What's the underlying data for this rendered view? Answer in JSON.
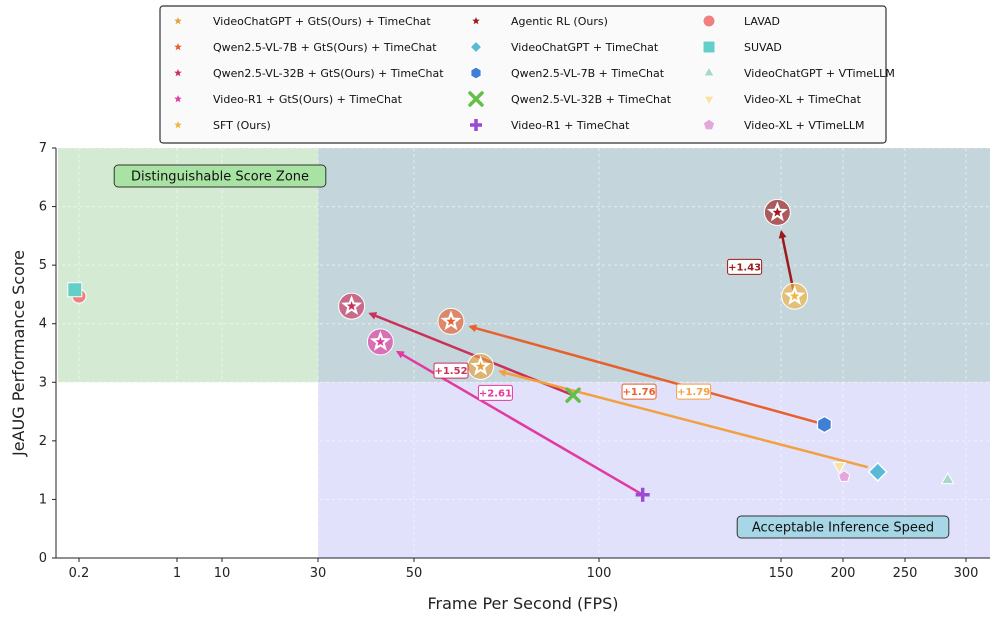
{
  "chart_data": {
    "type": "scatter",
    "xlabel": "Frame Per Second (FPS)",
    "ylabel": "JeAUG Performance Score",
    "ylim": [
      0,
      7
    ],
    "x_scale": "piecewise",
    "x_ticks": [
      "0.2",
      "1",
      "10",
      "30",
      "50",
      "100",
      "150",
      "200",
      "250",
      "300"
    ],
    "y_ticks": [
      "0",
      "1",
      "2",
      "3",
      "4",
      "5",
      "6",
      "7"
    ],
    "grid": true,
    "legend_position": "top",
    "zones": [
      {
        "label": "Distinguishable Score Zone",
        "x_range": [
          0.1,
          30
        ],
        "y_range": [
          3,
          7
        ],
        "color": "#d5ead3"
      },
      {
        "label": "Acceptable Inference Speed",
        "x_range": [
          30,
          310
        ],
        "y_range": [
          0,
          3
        ],
        "color": "#e2e1fb"
      },
      {
        "label": "",
        "x_range": [
          30,
          310
        ],
        "y_range": [
          3,
          7
        ],
        "color": "#c5d5dc"
      }
    ],
    "legend": [
      {
        "label": "VideoChatGPT + GtS(Ours) + TimeChat",
        "marker": "star",
        "color": "#e8a13a"
      },
      {
        "label": "Qwen2.5-VL-7B + GtS(Ours) + TimeChat",
        "marker": "star",
        "color": "#e8602c"
      },
      {
        "label": "Qwen2.5-VL-32B + GtS(Ours) + TimeChat",
        "marker": "star",
        "color": "#c8325a"
      },
      {
        "label": "Video-R1 + GtS(Ours) + TimeChat",
        "marker": "star",
        "color": "#e23aa0"
      },
      {
        "label": "SFT (Ours)",
        "marker": "star",
        "color": "#f2b640"
      },
      {
        "label": "Agentic RL (Ours)",
        "marker": "star",
        "color": "#9c1a1a"
      },
      {
        "label": "VideoChatGPT + TimeChat",
        "marker": "diamond",
        "color": "#5bb9d8"
      },
      {
        "label": "Qwen2.5-VL-7B + TimeChat",
        "marker": "hexagon",
        "color": "#3f7fd6"
      },
      {
        "label": "Qwen2.5-VL-32B + TimeChat",
        "marker": "x",
        "color": "#62c04a"
      },
      {
        "label": "Video-R1 + TimeChat",
        "marker": "plus",
        "color": "#9a4bd6"
      },
      {
        "label": "LAVAD",
        "marker": "circle",
        "color": "#f08080"
      },
      {
        "label": "SUVAD",
        "marker": "square",
        "color": "#62cfc8"
      },
      {
        "label": "VideoChatGPT + VTimeLLM",
        "marker": "triangle-up",
        "color": "#a6d9cc"
      },
      {
        "label": "Video-XL + TimeChat",
        "marker": "triangle-down",
        "color": "#f7e2a8"
      },
      {
        "label": "Video-XL + VTimeLLM",
        "marker": "pentagon",
        "color": "#e2a8dc"
      }
    ],
    "points": [
      {
        "series": "LAVAD",
        "x": 0.2,
        "y": 4.47
      },
      {
        "series": "SUVAD",
        "x": 0.18,
        "y": 4.58
      },
      {
        "series": "VideoChatGPT + TimeChat",
        "x": 228,
        "y": 1.47
      },
      {
        "series": "Qwen2.5-VL-7B + TimeChat",
        "x": 185,
        "y": 2.28
      },
      {
        "series": "Qwen2.5-VL-32B + TimeChat",
        "x": 93,
        "y": 2.78
      },
      {
        "series": "Video-R1 + TimeChat",
        "x": 112,
        "y": 1.08
      },
      {
        "series": "VideoChatGPT + VTimeLLM",
        "x": 285,
        "y": 1.33
      },
      {
        "series": "Video-XL + TimeChat",
        "x": 197,
        "y": 1.57
      },
      {
        "series": "Video-XL + VTimeLLM",
        "x": 201,
        "y": 1.39
      },
      {
        "series": "VideoChatGPT + GtS(Ours) + TimeChat",
        "x": 68,
        "y": 3.27
      },
      {
        "series": "Qwen2.5-VL-7B + GtS(Ours) + TimeChat",
        "x": 60,
        "y": 4.04
      },
      {
        "series": "Qwen2.5-VL-32B + GtS(Ours) + TimeChat",
        "x": 37,
        "y": 4.3
      },
      {
        "series": "Video-R1 + GtS(Ours) + TimeChat",
        "x": 43,
        "y": 3.69
      },
      {
        "series": "SFT (Ours)",
        "x": 161,
        "y": 4.47
      },
      {
        "series": "Agentic RL (Ours)",
        "x": 149,
        "y": 5.9
      }
    ],
    "arrows": [
      {
        "from": [
          93,
          2.78
        ],
        "to": [
          37,
          4.3
        ],
        "color": "#c8325a"
      },
      {
        "from": [
          185,
          2.28
        ],
        "to": [
          60,
          4.04
        ],
        "color": "#e8602c"
      },
      {
        "from": [
          220,
          1.55
        ],
        "to": [
          68,
          3.27
        ],
        "color": "#f2a040"
      },
      {
        "from": [
          112,
          1.08
        ],
        "to": [
          43,
          3.69
        ],
        "color": "#e23aa0"
      },
      {
        "from": [
          161,
          4.47
        ],
        "to": [
          149,
          5.9
        ],
        "color": "#9c1a1a"
      }
    ],
    "annotations": [
      {
        "text": "+1.43",
        "x": 140,
        "y": 4.97,
        "color": "#9c1a1a"
      },
      {
        "text": "+1.52",
        "x": 60,
        "y": 3.2,
        "color": "#c8325a"
      },
      {
        "text": "+2.61",
        "x": 72,
        "y": 2.82,
        "color": "#e23aa0"
      },
      {
        "text": "+1.76",
        "x": 111,
        "y": 2.84,
        "color": "#e8602c"
      },
      {
        "text": "+1.79",
        "x": 126,
        "y": 2.84,
        "color": "#f2a040"
      }
    ]
  }
}
